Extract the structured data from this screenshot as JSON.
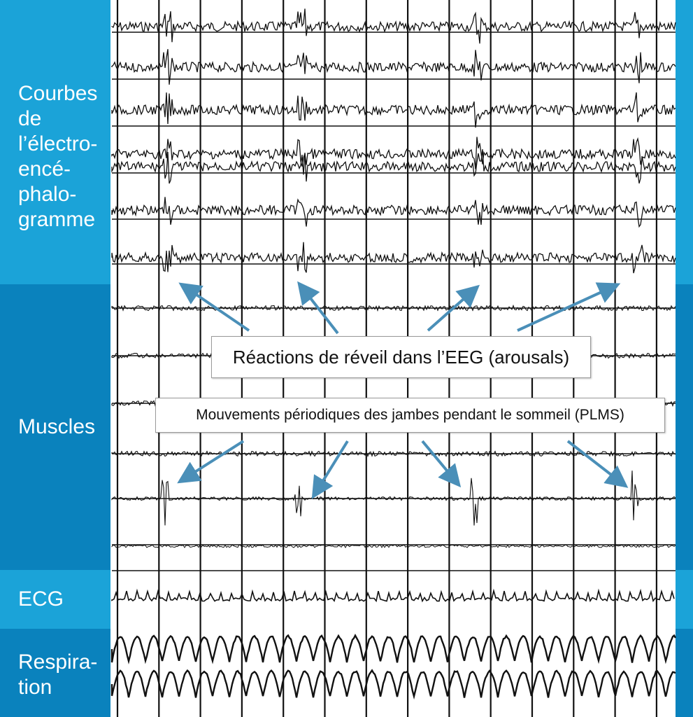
{
  "colors": {
    "band_light": "#1ba3d8",
    "band_dark": "#0a82bd",
    "paper": "#ffffff",
    "ink": "#111111",
    "arrow": "#4a8fb8"
  },
  "sections": {
    "eeg": {
      "label_lines": [
        "Courbes",
        "de",
        "l’électro-",
        "encé-",
        "phalo-",
        "gramme"
      ]
    },
    "muscles": {
      "label_lines": [
        "Muscles"
      ]
    },
    "ecg": {
      "label_lines": [
        "ECG"
      ]
    },
    "respiration": {
      "label_lines": [
        "Respira-",
        "tion"
      ]
    }
  },
  "annotations": {
    "arousals": "Réactions de réveil dans l’EEG (arousals)",
    "plms": "Mouvements périodiques des jambes pendant le sommeil (PLMS)"
  }
}
